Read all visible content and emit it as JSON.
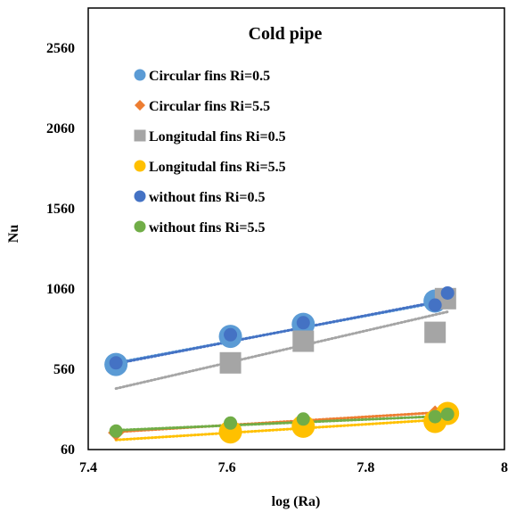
{
  "chart_data": {
    "type": "scatter",
    "title": "Cold pipe",
    "xlabel": "log (Ra)",
    "ylabel": "Nu",
    "xlim": [
      7.4,
      8.0
    ],
    "ylim": [
      60,
      2810
    ],
    "x_ticks": [
      "7.4",
      "7.6",
      "7.8",
      "8"
    ],
    "y_ticks": [
      "60",
      "560",
      "1060",
      "1560",
      "2060",
      "2560"
    ],
    "x_tick_values": [
      7.4,
      7.6,
      7.8,
      8.0
    ],
    "y_tick_values": [
      60,
      560,
      1060,
      1560,
      2060,
      2560
    ],
    "grid": false,
    "legend_position": "inside-top-left",
    "series": [
      {
        "name": "Circular fins Ri=0.5",
        "marker": "circle-large",
        "color": "#5B9BD5",
        "points": [
          [
            7.44,
            590
          ],
          [
            7.605,
            765
          ],
          [
            7.71,
            840
          ],
          [
            7.9,
            985
          ]
        ],
        "trend": [
          [
            7.44,
            600
          ],
          [
            7.92,
            990
          ]
        ]
      },
      {
        "name": "Circular fins Ri=5.5",
        "marker": "diamond",
        "color": "#ED7D31",
        "points": [
          [
            7.44,
            165
          ],
          [
            7.605,
            210
          ],
          [
            7.71,
            235
          ],
          [
            7.9,
            285
          ]
        ],
        "trend": [
          [
            7.44,
            170
          ],
          [
            7.92,
            295
          ]
        ]
      },
      {
        "name": "Longitudal  fins Ri=0.5",
        "marker": "square",
        "color": "#A5A5A5",
        "points": [
          [
            7.605,
            600
          ],
          [
            7.71,
            735
          ],
          [
            7.9,
            790
          ],
          [
            7.915,
            1000
          ]
        ],
        "trend": [
          [
            7.44,
            440
          ],
          [
            7.92,
            920
          ]
        ]
      },
      {
        "name": "Longitudal  fins Ri=5.5",
        "marker": "circle-large",
        "color": "#FFC000",
        "points": [
          [
            7.605,
            170
          ],
          [
            7.71,
            205
          ],
          [
            7.9,
            235
          ],
          [
            7.918,
            285
          ]
        ],
        "trend": [
          [
            7.44,
            120
          ],
          [
            7.92,
            250
          ]
        ]
      },
      {
        "name": "without fins Ri=0.5",
        "marker": "circle",
        "color": "#4472C4",
        "points": [
          [
            7.44,
            600
          ],
          [
            7.605,
            775
          ],
          [
            7.71,
            850
          ],
          [
            7.9,
            960
          ],
          [
            7.918,
            1035
          ]
        ],
        "trend": [
          [
            7.44,
            595
          ],
          [
            7.92,
            995
          ]
        ]
      },
      {
        "name": "without fins Ri=5.5",
        "marker": "circle",
        "color": "#70AD47",
        "points": [
          [
            7.44,
            175
          ],
          [
            7.605,
            225
          ],
          [
            7.71,
            250
          ],
          [
            7.9,
            265
          ],
          [
            7.918,
            280
          ]
        ],
        "trend": [
          [
            7.44,
            180
          ],
          [
            7.92,
            270
          ]
        ]
      }
    ]
  }
}
